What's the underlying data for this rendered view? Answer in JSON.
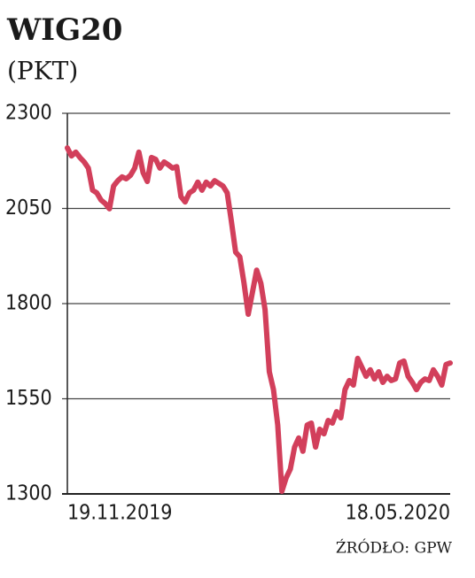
{
  "chart_data": {
    "type": "line",
    "title": "WIG20",
    "subtitle": "(PKT)",
    "source": "ŹRÓDŁO: GPW",
    "categories": [
      "19.11.2019",
      null,
      null,
      null,
      null,
      null,
      null,
      null,
      null,
      null,
      null,
      null,
      null,
      null,
      null,
      null,
      null,
      null,
      null,
      null,
      null,
      null,
      null,
      null,
      null,
      null,
      null,
      null,
      null,
      null,
      null,
      null,
      null,
      null,
      null,
      null,
      null,
      null,
      null,
      null,
      null,
      null,
      null,
      null,
      null,
      null,
      null,
      null,
      null,
      null,
      null,
      null,
      null,
      null,
      null,
      null,
      null,
      null,
      null,
      null,
      null,
      null,
      null,
      null,
      null,
      null,
      null,
      null,
      null,
      null,
      null,
      null,
      null,
      null,
      null,
      null,
      null,
      null,
      null,
      null,
      null,
      null,
      null,
      null,
      null,
      null,
      null,
      null,
      null,
      null,
      null,
      "18.05.2020"
    ],
    "values": [
      2209,
      2188,
      2198,
      2184,
      2172,
      2156,
      2098,
      2091,
      2072,
      2063,
      2049,
      2109,
      2123,
      2133,
      2128,
      2137,
      2156,
      2198,
      2144,
      2121,
      2184,
      2179,
      2156,
      2172,
      2165,
      2156,
      2160,
      2081,
      2067,
      2091,
      2098,
      2119,
      2098,
      2119,
      2109,
      2123,
      2116,
      2109,
      2091,
      2016,
      1935,
      1923,
      1853,
      1772,
      1830,
      1888,
      1853,
      1784,
      1621,
      1574,
      1481,
      1307,
      1342,
      1365,
      1423,
      1447,
      1412,
      1481,
      1486,
      1423,
      1470,
      1458,
      1493,
      1486,
      1516,
      1500,
      1574,
      1598,
      1586,
      1656,
      1633,
      1609,
      1626,
      1602,
      1621,
      1593,
      1609,
      1598,
      1602,
      1644,
      1649,
      1609,
      1593,
      1574,
      1593,
      1602,
      1598,
      1626,
      1609,
      1586,
      1640,
      1644
    ],
    "color": "#d23f5b",
    "ylim": [
      1300,
      2300
    ],
    "yticks": [
      1300,
      1550,
      1800,
      2050,
      2300
    ],
    "grid": true
  }
}
